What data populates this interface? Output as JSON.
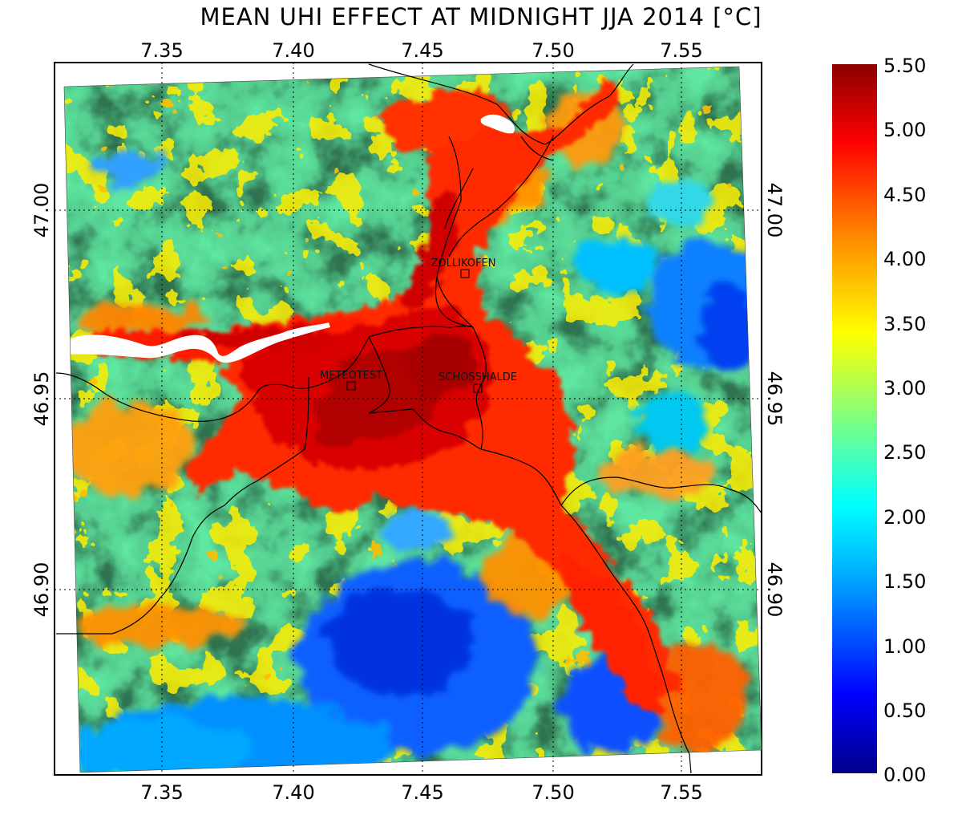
{
  "title": "MEAN UHI EFFECT AT MIDNIGHT JJA 2014 [°C]",
  "axes": {
    "x_ticks": [
      "7.35",
      "7.40",
      "7.45",
      "7.50",
      "7.55"
    ],
    "y_ticks": [
      "47.00",
      "46.95",
      "46.90"
    ]
  },
  "colorbar": {
    "min": 0.0,
    "max": 5.5,
    "labels": [
      "5.50",
      "5.00",
      "4.50",
      "4.00",
      "3.50",
      "3.00",
      "2.50",
      "2.00",
      "1.50",
      "1.00",
      "0.50",
      "0.00"
    ],
    "colors": [
      "#00008b",
      "#0000ff",
      "#0080ff",
      "#00ffff",
      "#80ff80",
      "#ffff00",
      "#ff8000",
      "#ff0000",
      "#8b0000"
    ]
  },
  "places": [
    {
      "name": "ZOLLIKOFEN",
      "lon": 7.466,
      "lat": 46.981
    },
    {
      "name": "METEOTEST",
      "lon": 7.423,
      "lat": 46.951
    },
    {
      "name": "SCHOSSHALDE",
      "lon": 7.471,
      "lat": 46.95
    }
  ]
}
